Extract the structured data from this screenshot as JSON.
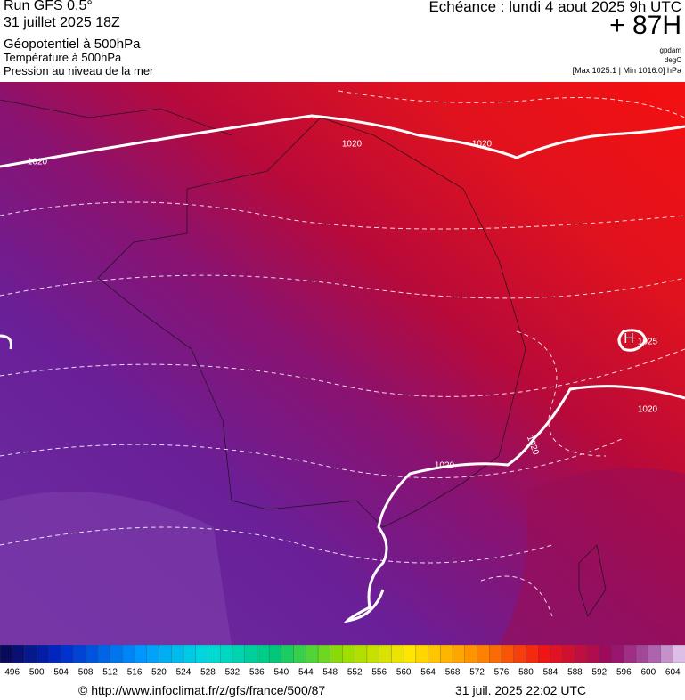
{
  "header": {
    "model": "Run GFS 0.5°",
    "run_date": "31 juillet 2025 18Z",
    "field": "Géopotentiel à 500hPa",
    "temperature": "Température à 500hPa",
    "pressure": "Pression au niveau de la mer",
    "valid": "Echéance : lundi 4 aout 2025 9h UTC",
    "lead": "+ 87H",
    "unit_geo": "gpdam",
    "unit_temp": "degC",
    "range": "[Max 1025.1 | Min 1016.0] hPa"
  },
  "map": {
    "isobar_labels": [
      "1020",
      "1020",
      "1020",
      "1025",
      "1020",
      "1020",
      "1020"
    ],
    "high": "H"
  },
  "colorbar": {
    "labels": [
      496,
      500,
      504,
      508,
      512,
      516,
      520,
      524,
      528,
      532,
      536,
      540,
      544,
      548,
      552,
      556,
      560,
      564,
      568,
      572,
      576,
      580,
      584,
      588,
      592,
      596,
      600,
      604
    ]
  },
  "footer": {
    "url": "© http://www.infoclimat.fr/z/gfs/france/500/87",
    "timestamp": "31 juil. 2025 22:02 UTC"
  }
}
